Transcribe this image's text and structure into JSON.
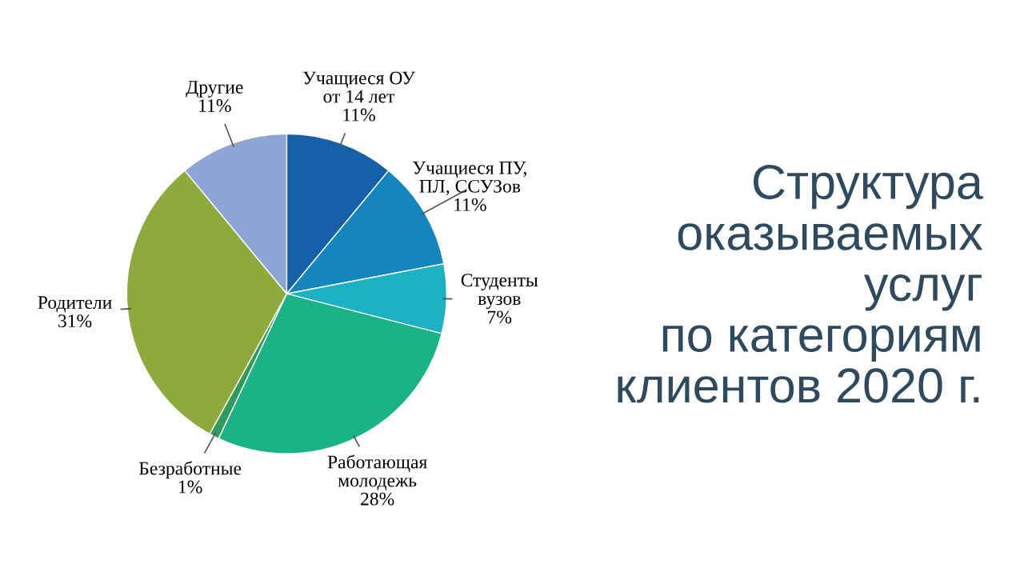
{
  "chart_data": {
    "type": "pie",
    "title": "Структура\nоказываемых\nуслуг\nпо категориям\nклиентов 2020 г.",
    "categories": [
      "Учащиеся ОУ\nот 14 лет",
      "Учащиеся ПУ,\nПЛ, ССУЗов",
      "Студенты\nвузов",
      "Работающая\nмолодежь",
      "Безработные",
      "Родители",
      "Другие"
    ],
    "values": [
      11,
      11,
      7,
      28,
      1,
      31,
      11
    ],
    "value_labels": [
      "11%",
      "11%",
      "7%",
      "28%",
      "1%",
      "31%",
      "11%"
    ],
    "colors": [
      "#1560a8",
      "#1586bd",
      "#1cb2c4",
      "#1ab386",
      "#2f9a5a",
      "#8faa3c",
      "#8ea6d6"
    ],
    "legend": false
  }
}
